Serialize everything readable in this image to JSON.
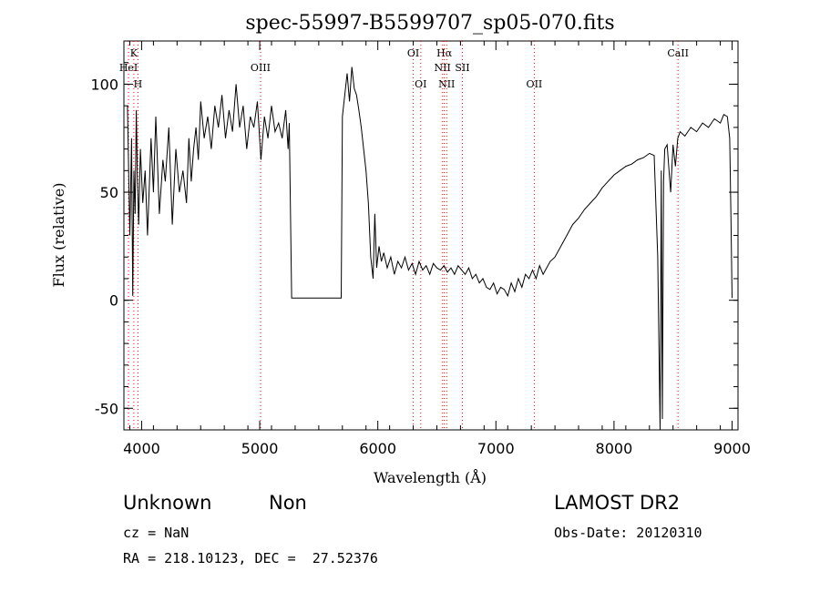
{
  "chart_data": {
    "type": "line",
    "title": "spec-55997-B5599707_sp05-070.fits",
    "xlabel": "Wavelength (Å)",
    "ylabel": "Flux (relative)",
    "xlim": [
      3850,
      9050
    ],
    "ylim": [
      -60,
      120
    ],
    "x_ticks": [
      4000,
      5000,
      6000,
      7000,
      8000,
      9000
    ],
    "y_ticks": [
      -50,
      0,
      50,
      100
    ],
    "grid": false,
    "line_color": "#000000",
    "marker_color": "#ff0000",
    "series": [
      {
        "x": [
          3880,
          3900,
          3915,
          3925,
          3935,
          3945,
          3955,
          3965,
          3975,
          3990,
          4010,
          4030,
          4050,
          4080,
          4100,
          4120,
          4150,
          4180,
          4200,
          4230,
          4260,
          4290,
          4320,
          4350,
          4380,
          4400,
          4420,
          4440,
          4460,
          4480,
          4500,
          4530,
          4560,
          4590,
          4620,
          4650,
          4680,
          4710,
          4740,
          4770,
          4800,
          4830,
          4860,
          4890,
          4920,
          4950,
          4980,
          5010,
          5040,
          5070,
          5100,
          5130,
          5160,
          5190,
          5220,
          5240,
          5250,
          5270,
          5400,
          5500,
          5600,
          5690,
          5700,
          5720,
          5740,
          5760,
          5780,
          5800,
          5820,
          5840,
          5860,
          5880,
          5900,
          5920,
          5940,
          5960,
          5975,
          5990,
          6010,
          6030,
          6050,
          6080,
          6110,
          6140,
          6170,
          6200,
          6230,
          6260,
          6290,
          6320,
          6350,
          6380,
          6410,
          6440,
          6470,
          6500,
          6530,
          6560,
          6590,
          6620,
          6650,
          6680,
          6710,
          6740,
          6770,
          6800,
          6830,
          6860,
          6890,
          6920,
          6950,
          6980,
          7010,
          7040,
          7070,
          7100,
          7130,
          7160,
          7190,
          7220,
          7250,
          7280,
          7310,
          7340,
          7370,
          7400,
          7430,
          7460,
          7500,
          7550,
          7600,
          7650,
          7700,
          7750,
          7800,
          7850,
          7900,
          7950,
          8000,
          8050,
          8100,
          8150,
          8200,
          8250,
          8300,
          8340,
          8370,
          8390,
          8400,
          8410,
          8420,
          8430,
          8450,
          8480,
          8500,
          8520,
          8540,
          8560,
          8600,
          8650,
          8700,
          8750,
          8800,
          8850,
          8900,
          8930,
          8960,
          8980,
          8990,
          9000
        ],
        "y": [
          90,
          30,
          75,
          2,
          60,
          40,
          88,
          55,
          35,
          70,
          45,
          60,
          30,
          75,
          50,
          85,
          40,
          65,
          55,
          80,
          35,
          70,
          50,
          60,
          45,
          75,
          55,
          70,
          80,
          65,
          92,
          75,
          85,
          70,
          90,
          80,
          95,
          75,
          88,
          78,
          100,
          80,
          90,
          70,
          85,
          80,
          92,
          65,
          85,
          75,
          90,
          78,
          82,
          75,
          88,
          70,
          82,
          1,
          1,
          1,
          1,
          1,
          85,
          95,
          105,
          92,
          108,
          98,
          95,
          88,
          80,
          70,
          60,
          45,
          20,
          10,
          40,
          15,
          25,
          18,
          22,
          15,
          20,
          12,
          18,
          15,
          20,
          14,
          17,
          12,
          18,
          14,
          16,
          12,
          17,
          15,
          14,
          16,
          13,
          15,
          12,
          16,
          14,
          12,
          15,
          10,
          12,
          8,
          10,
          6,
          5,
          8,
          3,
          6,
          5,
          2,
          8,
          4,
          10,
          6,
          12,
          10,
          14,
          10,
          16,
          12,
          15,
          18,
          20,
          25,
          30,
          35,
          38,
          42,
          45,
          48,
          52,
          55,
          58,
          60,
          62,
          63,
          65,
          66,
          68,
          67,
          20,
          -60,
          60,
          -55,
          55,
          70,
          72,
          50,
          72,
          62,
          75,
          78,
          76,
          80,
          78,
          82,
          80,
          84,
          82,
          86,
          85,
          75,
          40,
          1
        ]
      }
    ],
    "line_markers": [
      {
        "label": "K",
        "wavelength": 3934,
        "tier": 1
      },
      {
        "label": "HeI",
        "wavelength": 3889,
        "tier": 2
      },
      {
        "label": "H",
        "wavelength": 3969,
        "tier": 3
      },
      {
        "label": "OIII",
        "wavelength": 5007,
        "tier": 2
      },
      {
        "label": "OI",
        "wavelength": 6300,
        "tier": 1
      },
      {
        "label": "OI",
        "wavelength": 6364,
        "tier": 3
      },
      {
        "label": "Hα",
        "wavelength": 6563,
        "tier": 1
      },
      {
        "label": "NII",
        "wavelength": 6548,
        "tier": 2
      },
      {
        "label": "SII",
        "wavelength": 6716,
        "tier": 2
      },
      {
        "label": "NII",
        "wavelength": 6583,
        "tier": 3
      },
      {
        "label": "OII",
        "wavelength": 7325,
        "tier": 3
      },
      {
        "label": "CaII",
        "wavelength": 8542,
        "tier": 1
      }
    ]
  },
  "footer": {
    "class_label": "Unknown",
    "subclass_label": "Non",
    "survey_label": "LAMOST DR2",
    "cz_text": "cz = NaN",
    "obs_date_text": "Obs-Date: 20120310",
    "coords_text": "RA = 218.10123, DEC =  27.52376"
  }
}
